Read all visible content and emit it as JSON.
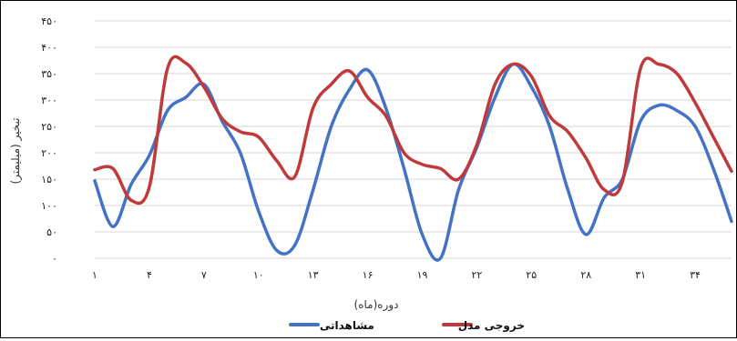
{
  "chart_data": {
    "type": "line",
    "xlabel": "دوره(ماه)",
    "ylabel": "تبخیر (میلیمتر)",
    "ylim": [
      0,
      450
    ],
    "xlim": [
      1,
      36
    ],
    "y_ticks": [
      0,
      50,
      100,
      150,
      200,
      250,
      300,
      350,
      400,
      450
    ],
    "y_tick_labels": [
      "۰",
      "۵۰",
      "۱۰۰",
      "۱۵۰",
      "۲۰۰",
      "۲۵۰",
      "۳۰۰",
      "۳۵۰",
      "۴۰۰",
      "۴۵۰"
    ],
    "x_ticks": [
      1,
      4,
      7,
      10,
      13,
      16,
      19,
      22,
      25,
      28,
      31,
      34
    ],
    "x_tick_labels": [
      "۱",
      "۴",
      "۷",
      "۱۰",
      "۱۳",
      "۱۶",
      "۱۹",
      "۲۲",
      "۲۵",
      "۲۸",
      "۳۱",
      "۳۴"
    ],
    "grid": true,
    "legend_position": "bottom",
    "x": [
      1,
      2,
      3,
      4,
      5,
      6,
      7,
      8,
      9,
      10,
      11,
      12,
      13,
      14,
      15,
      16,
      17,
      18,
      19,
      20,
      21,
      22,
      23,
      24,
      25,
      26,
      27,
      28,
      29,
      30,
      31,
      32,
      33,
      34,
      35,
      36
    ],
    "series": [
      {
        "name": "مشاهداتی",
        "color": "#4472C4",
        "values": [
          147,
          60,
          140,
          195,
          280,
          305,
          330,
          260,
          200,
          90,
          15,
          25,
          130,
          250,
          320,
          357,
          285,
          170,
          45,
          0,
          130,
          210,
          305,
          368,
          325,
          250,
          130,
          45,
          115,
          150,
          260,
          290,
          280,
          250,
          170,
          70
        ]
      },
      {
        "name": "خروجی مدل",
        "color": "#C0393B",
        "values": [
          168,
          170,
          110,
          135,
          360,
          370,
          325,
          265,
          240,
          230,
          185,
          155,
          285,
          330,
          355,
          305,
          270,
          200,
          178,
          170,
          150,
          215,
          330,
          368,
          345,
          270,
          240,
          190,
          130,
          145,
          360,
          368,
          350,
          295,
          230,
          165
        ]
      }
    ]
  }
}
